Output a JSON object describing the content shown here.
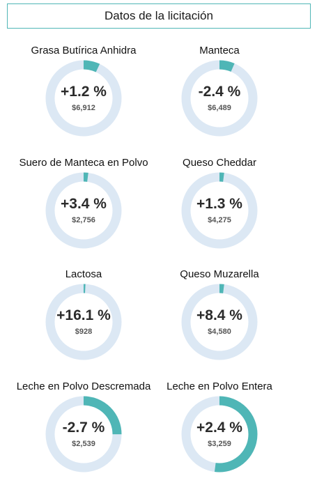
{
  "header": {
    "title": "Datos de la licitación"
  },
  "colors": {
    "accent": "#4fb6b6",
    "track": "#dce8f4"
  },
  "cards": [
    {
      "title": "Grasa Butírica Anhidra",
      "change": "+1.2 %",
      "price": "$6,912",
      "fill": 0.07
    },
    {
      "title": "Manteca",
      "change": "-2.4 %",
      "price": "$6,489",
      "fill": 0.065
    },
    {
      "title": "Suero de Manteca en Polvo",
      "change": "+3.4 %",
      "price": "$2,756",
      "fill": 0.02
    },
    {
      "title": "Queso Cheddar",
      "change": "+1.3 %",
      "price": "$4,275",
      "fill": 0.02
    },
    {
      "title": "Lactosa",
      "change": "+16.1 %",
      "price": "$928",
      "fill": 0.008
    },
    {
      "title": "Queso Muzarella",
      "change": "+8.4 %",
      "price": "$4,580",
      "fill": 0.02
    },
    {
      "title": "Leche en Polvo Descremada",
      "change": "-2.7 %",
      "price": "$2,539",
      "fill": 0.25
    },
    {
      "title": "Leche en Polvo Entera",
      "change": "+2.4 %",
      "price": "$3,259",
      "fill": 0.52
    }
  ]
}
